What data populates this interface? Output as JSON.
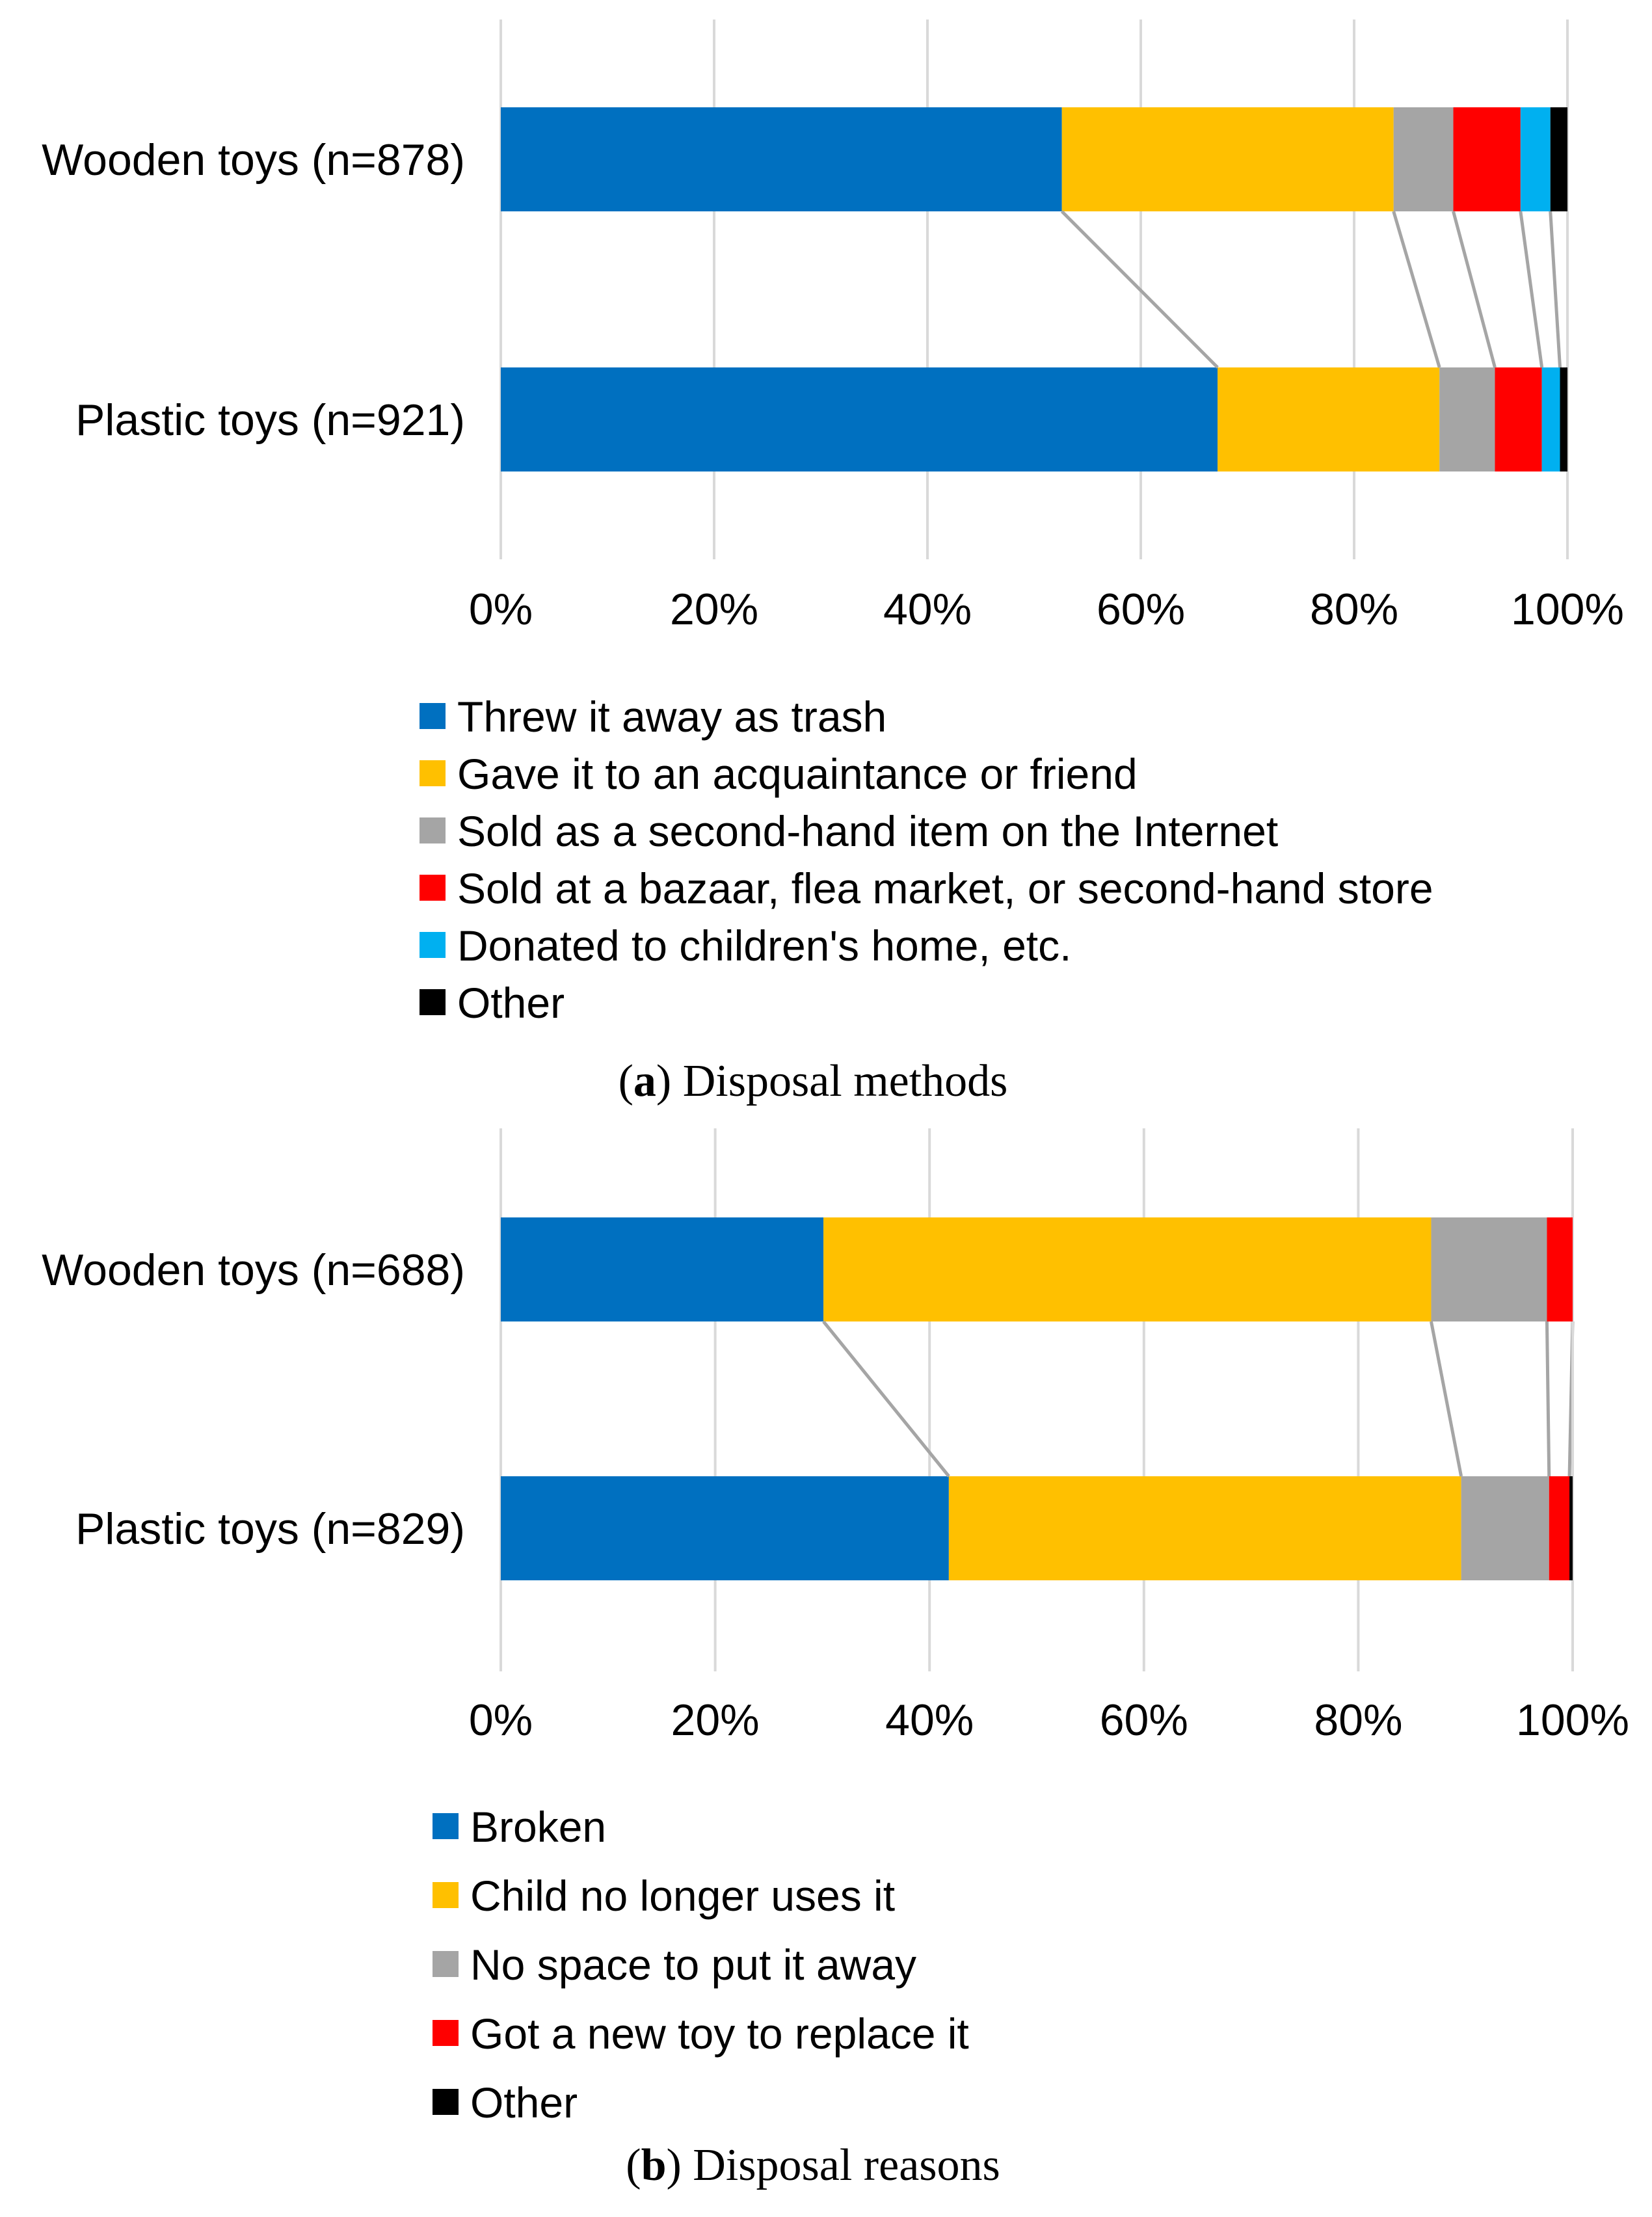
{
  "chart_data": [
    {
      "type": "bar",
      "orientation": "horizontal",
      "stacked": "percent",
      "caption_letter": "a",
      "caption_text": " Disposal methods",
      "categories": [
        "Wooden toys (n=878)",
        "Plastic toys (n=921)"
      ],
      "xlim": [
        0,
        100
      ],
      "xticks": [
        "0%",
        "20%",
        "40%",
        "60%",
        "80%",
        "100%"
      ],
      "grid": true,
      "legend_position": "bottom",
      "series": [
        {
          "name": "Threw it away as trash",
          "color": "#0070C0",
          "values": [
            52.6,
            67.2
          ]
        },
        {
          "name": "Gave it to an acquaintance or friend",
          "color": "#FFC000",
          "values": [
            31.1,
            20.8
          ]
        },
        {
          "name": "Sold as a second-hand item on the Internet",
          "color": "#A5A5A5",
          "values": [
            5.6,
            5.2
          ]
        },
        {
          "name": "Sold at a bazaar, flea market, or second-hand store",
          "color": "#FF0000",
          "values": [
            6.3,
            4.4
          ]
        },
        {
          "name": "Donated to children's home, etc.",
          "color": "#00B0F0",
          "values": [
            2.8,
            1.7
          ]
        },
        {
          "name": "Other",
          "color": "#000000",
          "values": [
            1.6,
            0.7
          ]
        }
      ]
    },
    {
      "type": "bar",
      "orientation": "horizontal",
      "stacked": "percent",
      "caption_letter": "b",
      "caption_text": " Disposal reasons",
      "categories": [
        "Wooden toys (n=688)",
        "Plastic toys (n=829)"
      ],
      "xlim": [
        0,
        100
      ],
      "xticks": [
        "0%",
        "20%",
        "40%",
        "60%",
        "80%",
        "100%"
      ],
      "grid": true,
      "legend_position": "bottom",
      "series": [
        {
          "name": "Broken",
          "color": "#0070C0",
          "values": [
            30.1,
            41.8
          ]
        },
        {
          "name": "Child no longer uses it",
          "color": "#FFC000",
          "values": [
            56.7,
            47.8
          ]
        },
        {
          "name": "No space to put it away",
          "color": "#A5A5A5",
          "values": [
            10.8,
            8.2
          ]
        },
        {
          "name": "Got a new toy to replace it",
          "color": "#FF0000",
          "values": [
            2.4,
            1.9
          ]
        },
        {
          "name": "Other",
          "color": "#000000",
          "values": [
            0.0,
            0.3
          ]
        }
      ]
    }
  ]
}
